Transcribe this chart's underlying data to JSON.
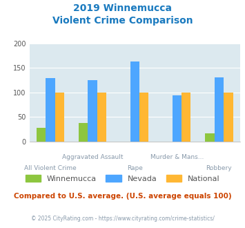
{
  "title_line1": "2019 Winnemucca",
  "title_line2": "Violent Crime Comparison",
  "categories": [
    "All Violent Crime",
    "Aggravated Assault",
    "Rape",
    "Murder & Mans...",
    "Robbery"
  ],
  "winnemucca": [
    28,
    37,
    0,
    0,
    17
  ],
  "nevada": [
    129,
    125,
    163,
    94,
    130
  ],
  "national": [
    100,
    100,
    100,
    100,
    100
  ],
  "colors": {
    "winnemucca": "#8dc63f",
    "nevada": "#4da6ff",
    "national": "#ffb733"
  },
  "ylim": [
    0,
    200
  ],
  "yticks": [
    0,
    50,
    100,
    150,
    200
  ],
  "bg_color": "#dce9ef",
  "title_color": "#1a7abf",
  "axis_label_color": "#8899aa",
  "footer_text": "Compared to U.S. average. (U.S. average equals 100)",
  "footer_color": "#cc4400",
  "credit_text": "© 2025 CityRating.com - https://www.cityrating.com/crime-statistics/",
  "credit_color": "#8899aa",
  "legend_labels": [
    "Winnemucca",
    "Nevada",
    "National"
  ],
  "bar_width": 0.22,
  "top_cats": [
    "Aggravated Assault",
    "Murder & Mans..."
  ],
  "bottom_cats": [
    "All Violent Crime",
    "Rape",
    "Robbery"
  ]
}
